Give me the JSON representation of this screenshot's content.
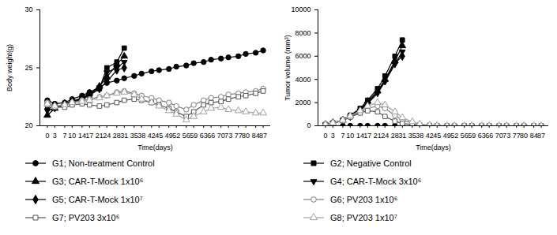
{
  "chart_data": [
    {
      "type": "line",
      "x_label": "Time(days)",
      "y_label": "Body weight(g)",
      "x": [
        0,
        3,
        7,
        10,
        14,
        17,
        21,
        24,
        28,
        31,
        35,
        38,
        42,
        45,
        49,
        52,
        56,
        59,
        63,
        66,
        70,
        73,
        77,
        80,
        84,
        87
      ],
      "xlim": [
        -3,
        90
      ],
      "xticks": [
        0,
        3,
        7,
        10,
        14,
        17,
        21,
        24,
        28,
        31,
        35,
        38,
        42,
        45,
        49,
        52,
        56,
        59,
        63,
        66,
        70,
        73,
        77,
        80,
        84,
        87
      ],
      "ylim": [
        20,
        30
      ],
      "yticks": [
        20,
        25,
        30
      ],
      "legend": "bottom",
      "series": [
        {
          "name": "G1; Non-treatment Control",
          "color": "#000000",
          "marker": "circle",
          "values": [
            22.2,
            21.9,
            22.0,
            22.3,
            22.6,
            22.9,
            23.3,
            23.7,
            23.9,
            24.1,
            24.3,
            24.5,
            24.7,
            24.8,
            24.9,
            25.1,
            25.2,
            25.4,
            25.5,
            25.7,
            25.8,
            25.9,
            26.0,
            26.2,
            26.3,
            26.5
          ]
        },
        {
          "name": "G2; Negative Control",
          "color": "#000000",
          "marker": "square",
          "values": [
            22.0,
            21.6,
            21.8,
            22.0,
            22.3,
            22.6,
            23.2,
            25.0,
            25.5,
            26.7,
            null,
            null,
            null,
            null,
            null,
            null,
            null,
            null,
            null,
            null,
            null,
            null,
            null,
            null,
            null,
            null
          ]
        },
        {
          "name": "G3; CAR-T-Mock 1x10⁶",
          "color": "#000000",
          "marker": "triangle",
          "values": [
            20.9,
            21.5,
            21.8,
            22.1,
            22.4,
            22.8,
            23.4,
            24.2,
            25.3,
            26.0,
            null,
            null,
            null,
            null,
            null,
            null,
            null,
            null,
            null,
            null,
            null,
            null,
            null,
            null,
            null,
            null
          ]
        },
        {
          "name": "G4; CAR-T-Mock 3x10⁶",
          "color": "#000000",
          "marker": "triangle-down",
          "values": [
            21.3,
            21.5,
            21.8,
            22.0,
            22.3,
            22.7,
            23.3,
            24.6,
            25.0,
            25.5,
            null,
            null,
            null,
            null,
            null,
            null,
            null,
            null,
            null,
            null,
            null,
            null,
            null,
            null,
            null,
            null
          ]
        },
        {
          "name": "G5; CAR-T-Mock 1x10⁷",
          "color": "#000000",
          "marker": "diamond",
          "values": [
            21.5,
            21.6,
            21.9,
            22.1,
            22.4,
            22.7,
            23.2,
            23.8,
            24.8,
            25.0,
            null,
            null,
            null,
            null,
            null,
            null,
            null,
            null,
            null,
            null,
            null,
            null,
            null,
            null,
            null,
            null
          ]
        },
        {
          "name": "G6; PV203 1x10⁶",
          "color": "#808080",
          "marker": "open-circle",
          "values": [
            22.0,
            21.7,
            21.8,
            22.0,
            22.2,
            22.3,
            22.5,
            22.6,
            22.9,
            23.0,
            22.8,
            22.6,
            22.4,
            22.2,
            22.0,
            21.7,
            21.4,
            21.8,
            22.2,
            22.4,
            22.5,
            22.7,
            22.8,
            22.9,
            23.0,
            23.2
          ]
        },
        {
          "name": "G7; PV203 3x10⁶",
          "color": "#555555",
          "marker": "open-square",
          "values": [
            21.8,
            21.6,
            21.6,
            21.8,
            21.9,
            21.8,
            21.7,
            21.8,
            22.0,
            22.2,
            22.3,
            22.2,
            22.0,
            21.8,
            21.5,
            21.2,
            20.8,
            21.2,
            21.8,
            22.0,
            22.1,
            22.3,
            22.5,
            22.6,
            22.8,
            23.0
          ]
        },
        {
          "name": "G8; PV203 1x10⁷",
          "color": "#a0a0a0",
          "marker": "open-triangle",
          "values": [
            21.9,
            21.7,
            21.8,
            22.0,
            22.1,
            22.2,
            22.4,
            22.6,
            22.8,
            22.9,
            22.7,
            22.3,
            22.0,
            21.7,
            21.3,
            21.0,
            20.5,
            20.8,
            21.2,
            21.5,
            21.6,
            21.4,
            21.3,
            21.2,
            21.1,
            21.1
          ]
        }
      ]
    },
    {
      "type": "line",
      "x_label": "Time(days)",
      "y_label": "Tumor volume (mm³)",
      "x": [
        0,
        3,
        7,
        10,
        14,
        17,
        21,
        24,
        28,
        31,
        35,
        38,
        42,
        45,
        49,
        52,
        56,
        59,
        63,
        66,
        70,
        73,
        77,
        80,
        84,
        87
      ],
      "xlim": [
        -3,
        90
      ],
      "xticks": [
        0,
        3,
        7,
        10,
        14,
        17,
        21,
        24,
        28,
        31,
        35,
        38,
        42,
        45,
        49,
        52,
        56,
        59,
        63,
        66,
        70,
        73,
        77,
        80,
        84,
        87
      ],
      "ylim": [
        0,
        10000
      ],
      "yticks": [
        0,
        2000,
        4000,
        6000,
        8000,
        10000
      ],
      "legend": "bottom",
      "series": [
        {
          "name": "G1; Non-treatment Control",
          "color": "#000000",
          "marker": "circle",
          "values": [
            0,
            0,
            0,
            0,
            0,
            0,
            0,
            0,
            0,
            0,
            0,
            0,
            0,
            0,
            0,
            0,
            0,
            0,
            0,
            0,
            0,
            0,
            0,
            0,
            0,
            0
          ]
        },
        {
          "name": "G2; Negative Control",
          "color": "#000000",
          "marker": "square",
          "values": [
            100,
            250,
            500,
            900,
            1500,
            2200,
            3200,
            4300,
            6000,
            7400,
            null,
            null,
            null,
            null,
            null,
            null,
            null,
            null,
            null,
            null,
            null,
            null,
            null,
            null,
            null,
            null
          ]
        },
        {
          "name": "G3; CAR-T-Mock 1x10⁶",
          "color": "#000000",
          "marker": "triangle",
          "values": [
            100,
            250,
            480,
            850,
            1400,
            2100,
            3000,
            4000,
            5600,
            6900,
            null,
            null,
            null,
            null,
            null,
            null,
            null,
            null,
            null,
            null,
            null,
            null,
            null,
            null,
            null,
            null
          ]
        },
        {
          "name": "G4; CAR-T-Mock 3x10⁶",
          "color": "#000000",
          "marker": "triangle-down",
          "values": [
            100,
            230,
            450,
            800,
            1300,
            1900,
            2800,
            3800,
            5300,
            6400,
            null,
            null,
            null,
            null,
            null,
            null,
            null,
            null,
            null,
            null,
            null,
            null,
            null,
            null,
            null,
            null
          ]
        },
        {
          "name": "G5; CAR-T-Mock 1x10⁷",
          "color": "#000000",
          "marker": "diamond",
          "values": [
            100,
            240,
            470,
            820,
            1350,
            2000,
            2900,
            3900,
            5400,
            6000,
            null,
            null,
            null,
            null,
            null,
            null,
            null,
            null,
            null,
            null,
            null,
            null,
            null,
            null,
            null,
            null
          ]
        },
        {
          "name": "G6; PV203 1x10⁶",
          "color": "#808080",
          "marker": "open-circle",
          "values": [
            100,
            240,
            450,
            800,
            1200,
            1500,
            1700,
            1500,
            900,
            500,
            250,
            100,
            50,
            20,
            0,
            0,
            0,
            0,
            0,
            0,
            0,
            0,
            0,
            0,
            0,
            0
          ]
        },
        {
          "name": "G7; PV203 3x10⁶",
          "color": "#555555",
          "marker": "open-square",
          "values": [
            100,
            230,
            430,
            760,
            1100,
            1300,
            1200,
            800,
            400,
            200,
            100,
            50,
            20,
            0,
            0,
            0,
            0,
            0,
            0,
            0,
            0,
            0,
            0,
            0,
            0,
            0
          ]
        },
        {
          "name": "G8; PV203 1x10⁷",
          "color": "#a0a0a0",
          "marker": "open-triangle",
          "values": [
            100,
            250,
            480,
            850,
            1300,
            1700,
            2000,
            1800,
            1200,
            700,
            350,
            150,
            60,
            20,
            0,
            0,
            0,
            0,
            0,
            0,
            0,
            0,
            0,
            0,
            0,
            0
          ]
        }
      ]
    }
  ]
}
